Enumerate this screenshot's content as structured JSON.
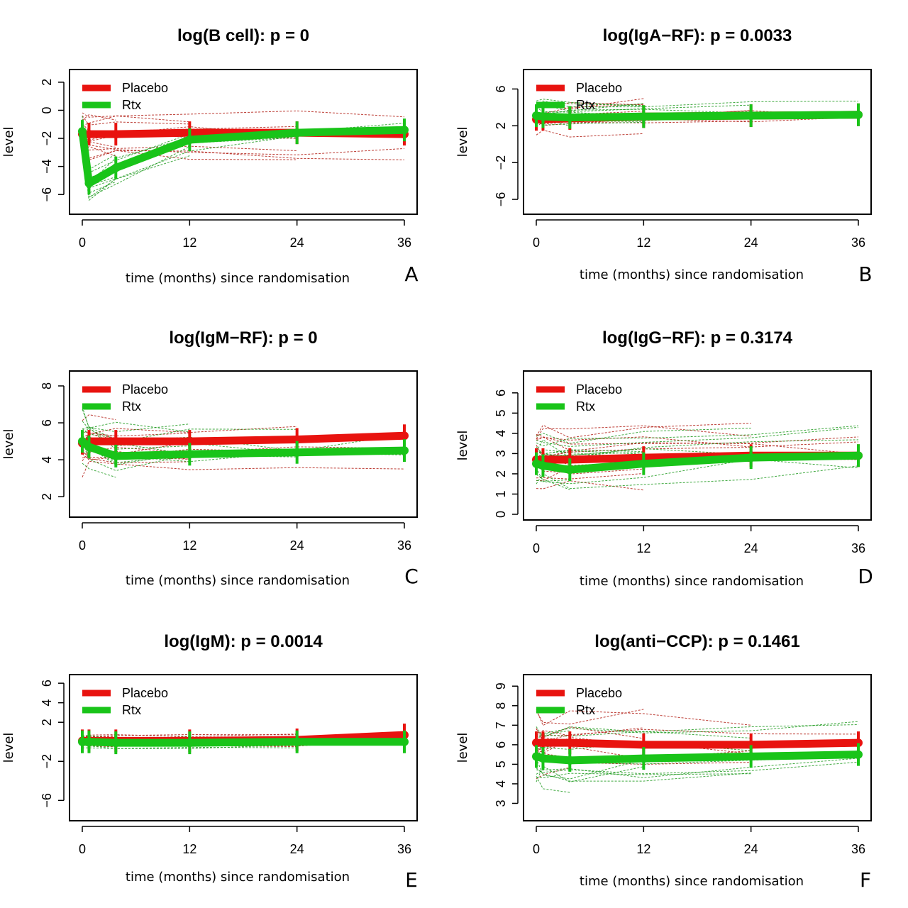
{
  "colors": {
    "placebo": "#e8130f",
    "rtx": "#19c419",
    "placebo_indiv": "#b01a10",
    "rtx_indiv": "#1f9a1f"
  },
  "chart_data": [
    {
      "type": "line",
      "letter": "A",
      "title": "log(B cell): p = 0",
      "xlabel": "time (months) since randomisation",
      "ylabel": "level",
      "xlim": [
        0,
        36
      ],
      "ylim": [
        -7,
        2.5
      ],
      "xticks": [
        "0",
        "12",
        "24",
        "36"
      ],
      "yticks": [
        "2",
        "0",
        "−2",
        "−4",
        "−6"
      ],
      "legend": {
        "position": "top-left",
        "entries": [
          "Placebo",
          "Rtx"
        ]
      },
      "x": [
        0,
        0.75,
        3.75,
        12,
        24,
        36
      ],
      "series": [
        {
          "name": "Placebo",
          "values": [
            -1.7,
            -1.7,
            -1.7,
            -1.6,
            -1.6,
            -1.7
          ]
        },
        {
          "name": "Rtx",
          "values": [
            -1.5,
            -5.2,
            -4.1,
            -2.1,
            -1.6,
            -1.4
          ]
        }
      ],
      "indiv_spread": 1.5
    },
    {
      "type": "line",
      "letter": "B",
      "title": "log(IgA−RF): p = 0.0033",
      "xlabel": "time (months) since randomisation",
      "ylabel": "level",
      "xlim": [
        0,
        36
      ],
      "ylim": [
        -7,
        7.5
      ],
      "xticks": [
        "0",
        "12",
        "24",
        "36"
      ],
      "yticks": [
        "6",
        "2",
        "−2",
        "−6"
      ],
      "legend": {
        "position": "top-left",
        "entries": [
          "Placebo",
          "Rtx"
        ]
      },
      "x": [
        0,
        0.75,
        3.75,
        12,
        24,
        36
      ],
      "series": [
        {
          "name": "Placebo",
          "values": [
            2.7,
            2.7,
            2.8,
            3.0,
            3.1,
            3.2
          ]
        },
        {
          "name": "Rtx",
          "values": [
            3.1,
            3.0,
            2.9,
            3.0,
            3.1,
            3.2
          ]
        }
      ],
      "indiv_spread": 1.6
    },
    {
      "type": "line",
      "letter": "C",
      "title": "log(IgM−RF): p = 0",
      "xlabel": "time (months) since randomisation",
      "ylabel": "level",
      "xlim": [
        0,
        36
      ],
      "ylim": [
        1.2,
        8.5
      ],
      "xticks": [
        "0",
        "12",
        "24",
        "36"
      ],
      "yticks": [
        "8",
        "6",
        "4",
        "2"
      ],
      "legend": {
        "position": "top-left",
        "entries": [
          "Placebo",
          "Rtx"
        ]
      },
      "x": [
        0,
        0.75,
        3.75,
        12,
        24,
        36
      ],
      "series": [
        {
          "name": "Placebo",
          "values": [
            4.9,
            5.0,
            5.0,
            5.0,
            5.1,
            5.3
          ]
        },
        {
          "name": "Rtx",
          "values": [
            5.0,
            4.7,
            4.2,
            4.3,
            4.4,
            4.5
          ]
        }
      ],
      "indiv_spread": 1.5
    },
    {
      "type": "line",
      "letter": "D",
      "title": "log(IgG−RF): p = 0.3174",
      "xlabel": "time (months) since randomisation",
      "ylabel": "level",
      "xlim": [
        0,
        36
      ],
      "ylim": [
        0,
        6.8
      ],
      "xticks": [
        "0",
        "12",
        "24",
        "36"
      ],
      "yticks": [
        "6",
        "5",
        "4",
        "3",
        "2",
        "1",
        "0"
      ],
      "legend": {
        "position": "top-left",
        "entries": [
          "Placebo",
          "Rtx"
        ]
      },
      "x": [
        0,
        0.75,
        3.75,
        12,
        24,
        36
      ],
      "series": [
        {
          "name": "Placebo",
          "values": [
            2.7,
            2.7,
            2.7,
            2.8,
            2.9,
            2.9
          ]
        },
        {
          "name": "Rtx",
          "values": [
            2.5,
            2.4,
            2.2,
            2.5,
            2.8,
            2.9
          ]
        }
      ],
      "indiv_spread": 1.4
    },
    {
      "type": "line",
      "letter": "E",
      "title": "log(IgM): p = 0.0014",
      "xlabel": "time (months) since randomisation",
      "ylabel": "level",
      "xlim": [
        0,
        36
      ],
      "ylim": [
        -7.5,
        6.3
      ],
      "xticks": [
        "0",
        "12",
        "24",
        "36"
      ],
      "yticks": [
        "6",
        "4",
        "2",
        "−2",
        "−6"
      ],
      "legend": {
        "position": "top-left",
        "entries": [
          "Placebo",
          "Rtx"
        ]
      },
      "x": [
        0,
        0.75,
        3.75,
        12,
        24,
        36
      ],
      "series": [
        {
          "name": "Placebo",
          "values": [
            0.1,
            0.1,
            0.1,
            0.1,
            0.2,
            0.7
          ]
        },
        {
          "name": "Rtx",
          "values": [
            0.0,
            0.0,
            -0.1,
            -0.1,
            0.0,
            0.0
          ]
        }
      ],
      "indiv_spread": 0.6
    },
    {
      "type": "line",
      "letter": "F",
      "title": "log(anti−CCP): p = 0.1461",
      "xlabel": "time (months) since randomisation",
      "ylabel": "level",
      "xlim": [
        0,
        36
      ],
      "ylim": [
        2.4,
        9.3
      ],
      "xticks": [
        "0",
        "12",
        "24",
        "36"
      ],
      "yticks": [
        "9",
        "8",
        "7",
        "6",
        "5",
        "4",
        "3"
      ],
      "legend": {
        "position": "top-left",
        "entries": [
          "Placebo",
          "Rtx"
        ]
      },
      "x": [
        0,
        0.75,
        3.75,
        12,
        24,
        36
      ],
      "series": [
        {
          "name": "Placebo",
          "values": [
            6.1,
            6.1,
            6.1,
            6.0,
            6.0,
            6.1
          ]
        },
        {
          "name": "Rtx",
          "values": [
            5.4,
            5.3,
            5.2,
            5.3,
            5.4,
            5.5
          ]
        }
      ],
      "indiv_spread": 1.6
    }
  ]
}
